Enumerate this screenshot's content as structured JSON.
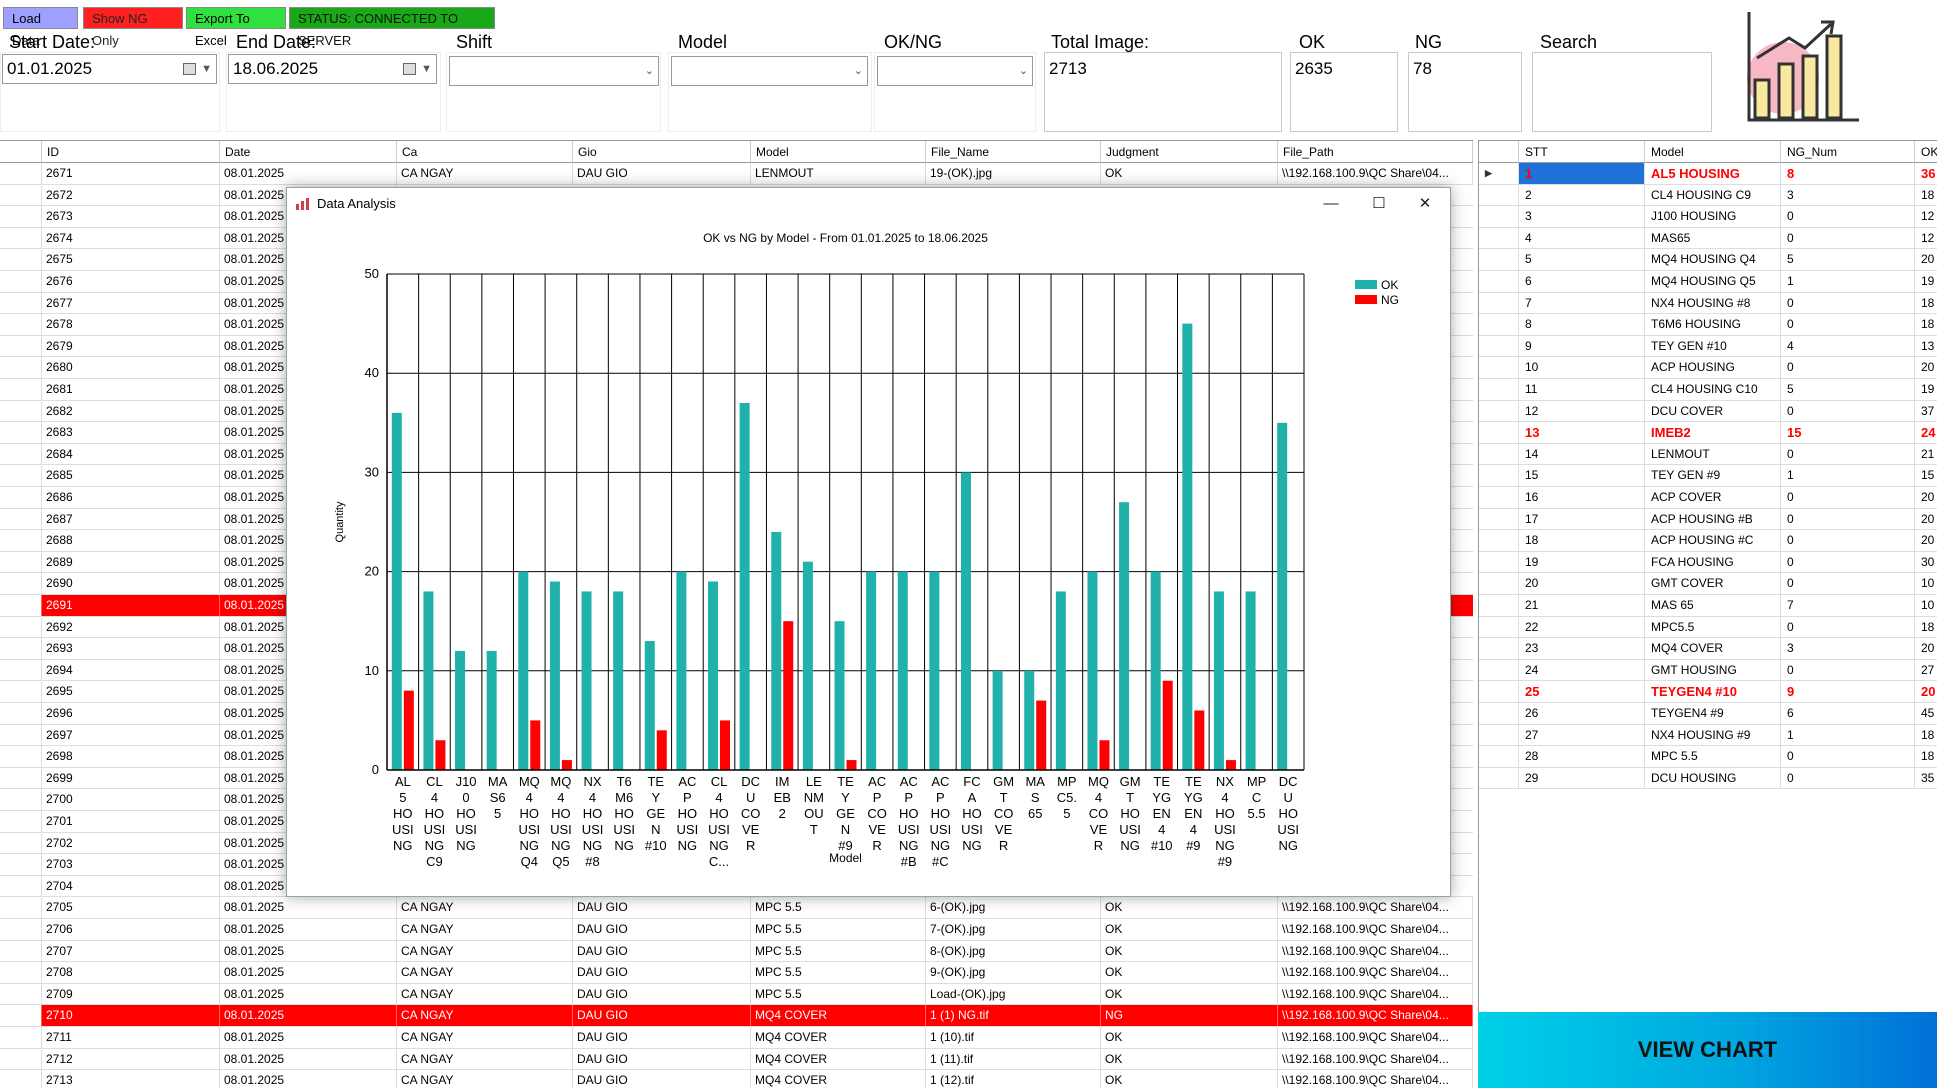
{
  "toolbar": {
    "load_data": "Load Data",
    "show_ng": "Show NG Only",
    "export_excel": "Export To Excel",
    "status": "STATUS: CONNECTED TO SERVER",
    "colors": {
      "load": "#9ea0ff",
      "show_ng": "#ff2020",
      "export": "#30e040",
      "status": "#18a818"
    }
  },
  "filters": {
    "start_date_label": "Start Date:",
    "start_date": "01.01.2025",
    "end_date_label": "End  Date:",
    "end_date": "18.06.2025",
    "shift_label": "Shift",
    "model_label": "Model",
    "okng_label": "OK/NG",
    "total_label": "Total Image:",
    "total_value": "2713",
    "ok_label": "OK",
    "ok_value": "2635",
    "ng_label": "NG",
    "ng_value": "78",
    "search_label": "Search",
    "chart_icon": "bar-chart-growth-icon"
  },
  "grid": {
    "columns": [
      "ID",
      "Date",
      "Ca",
      "Gio",
      "Model",
      "File_Name",
      "Judgment",
      "File_Path"
    ],
    "top_rows": [
      {
        "id": "2671",
        "date": "08.01.2025",
        "ca": "CA NGAY",
        "gio": "DAU GIO",
        "model": "LENMOUT",
        "file": "19-(OK).jpg",
        "judg": "OK",
        "path": "\\\\192.168.100.9\\QC Share\\04...",
        "ng": false
      }
    ],
    "mid_ids": [
      "2672",
      "2673",
      "2674",
      "2675",
      "2676",
      "2677",
      "2678",
      "2679",
      "2680",
      "2681",
      "2682",
      "2683",
      "2684",
      "2685",
      "2686",
      "2687",
      "2688",
      "2689",
      "2690",
      "2691",
      "2692",
      "2693",
      "2694",
      "2695",
      "2696",
      "2697",
      "2698",
      "2699",
      "2700",
      "2701",
      "2702",
      "2703",
      "2704"
    ],
    "mid_date": "08.01.2025",
    "mid_ng_id": "2691",
    "bottom_rows": [
      {
        "id": "2705",
        "date": "08.01.2025",
        "ca": "CA NGAY",
        "gio": "DAU GIO",
        "model": "MPC 5.5",
        "file": "6-(OK).jpg",
        "judg": "OK",
        "path": "\\\\192.168.100.9\\QC Share\\04...",
        "ng": false
      },
      {
        "id": "2706",
        "date": "08.01.2025",
        "ca": "CA NGAY",
        "gio": "DAU GIO",
        "model": "MPC 5.5",
        "file": "7-(OK).jpg",
        "judg": "OK",
        "path": "\\\\192.168.100.9\\QC Share\\04...",
        "ng": false
      },
      {
        "id": "2707",
        "date": "08.01.2025",
        "ca": "CA NGAY",
        "gio": "DAU GIO",
        "model": "MPC 5.5",
        "file": "8-(OK).jpg",
        "judg": "OK",
        "path": "\\\\192.168.100.9\\QC Share\\04...",
        "ng": false
      },
      {
        "id": "2708",
        "date": "08.01.2025",
        "ca": "CA NGAY",
        "gio": "DAU GIO",
        "model": "MPC 5.5",
        "file": "9-(OK).jpg",
        "judg": "OK",
        "path": "\\\\192.168.100.9\\QC Share\\04...",
        "ng": false
      },
      {
        "id": "2709",
        "date": "08.01.2025",
        "ca": "CA NGAY",
        "gio": "DAU GIO",
        "model": "MPC 5.5",
        "file": "Load-(OK).jpg",
        "judg": "OK",
        "path": "\\\\192.168.100.9\\QC Share\\04...",
        "ng": false
      },
      {
        "id": "2710",
        "date": "08.01.2025",
        "ca": "CA NGAY",
        "gio": "DAU GIO",
        "model": "MQ4 COVER",
        "file": "1 (1) NG.tif",
        "judg": "NG",
        "path": "\\\\192.168.100.9\\QC Share\\04...",
        "ng": true
      },
      {
        "id": "2711",
        "date": "08.01.2025",
        "ca": "CA NGAY",
        "gio": "DAU GIO",
        "model": "MQ4 COVER",
        "file": "1 (10).tif",
        "judg": "OK",
        "path": "\\\\192.168.100.9\\QC Share\\04...",
        "ng": false
      },
      {
        "id": "2712",
        "date": "08.01.2025",
        "ca": "CA NGAY",
        "gio": "DAU GIO",
        "model": "MQ4 COVER",
        "file": "1 (11).tif",
        "judg": "OK",
        "path": "\\\\192.168.100.9\\QC Share\\04...",
        "ng": false
      },
      {
        "id": "2713",
        "date": "08.01.2025",
        "ca": "CA NGAY",
        "gio": "DAU GIO",
        "model": "MQ4 COVER",
        "file": "1 (12).tif",
        "judg": "OK",
        "path": "\\\\192.168.100.9\\QC Share\\04...",
        "ng": false
      }
    ]
  },
  "summary": {
    "columns": [
      "STT",
      "Model",
      "NG_Num",
      "OK_"
    ],
    "rows": [
      {
        "stt": "1",
        "model": "AL5 HOUSING",
        "ng": "8",
        "ok": "36",
        "hl": true
      },
      {
        "stt": "2",
        "model": "CL4 HOUSING C9",
        "ng": "3",
        "ok": "18",
        "hl": false
      },
      {
        "stt": "3",
        "model": "J100 HOUSING",
        "ng": "0",
        "ok": "12",
        "hl": false
      },
      {
        "stt": "4",
        "model": "MAS65",
        "ng": "0",
        "ok": "12",
        "hl": false
      },
      {
        "stt": "5",
        "model": "MQ4 HOUSING Q4",
        "ng": "5",
        "ok": "20",
        "hl": false
      },
      {
        "stt": "6",
        "model": "MQ4 HOUSING Q5",
        "ng": "1",
        "ok": "19",
        "hl": false
      },
      {
        "stt": "7",
        "model": "NX4 HOUSING #8",
        "ng": "0",
        "ok": "18",
        "hl": false
      },
      {
        "stt": "8",
        "model": "T6M6 HOUSING",
        "ng": "0",
        "ok": "18",
        "hl": false
      },
      {
        "stt": "9",
        "model": "TEY GEN #10",
        "ng": "4",
        "ok": "13",
        "hl": false
      },
      {
        "stt": "10",
        "model": "ACP HOUSING",
        "ng": "0",
        "ok": "20",
        "hl": false
      },
      {
        "stt": "11",
        "model": "CL4 HOUSING C10",
        "ng": "5",
        "ok": "19",
        "hl": false
      },
      {
        "stt": "12",
        "model": "DCU COVER",
        "ng": "0",
        "ok": "37",
        "hl": false
      },
      {
        "stt": "13",
        "model": "IMEB2",
        "ng": "15",
        "ok": "24",
        "hl": true
      },
      {
        "stt": "14",
        "model": "LENMOUT",
        "ng": "0",
        "ok": "21",
        "hl": false
      },
      {
        "stt": "15",
        "model": "TEY GEN #9",
        "ng": "1",
        "ok": "15",
        "hl": false
      },
      {
        "stt": "16",
        "model": "ACP COVER",
        "ng": "0",
        "ok": "20",
        "hl": false
      },
      {
        "stt": "17",
        "model": "ACP HOUSING #B",
        "ng": "0",
        "ok": "20",
        "hl": false
      },
      {
        "stt": "18",
        "model": "ACP HOUSING #C",
        "ng": "0",
        "ok": "20",
        "hl": false
      },
      {
        "stt": "19",
        "model": "FCA HOUSING",
        "ng": "0",
        "ok": "30",
        "hl": false
      },
      {
        "stt": "20",
        "model": "GMT COVER",
        "ng": "0",
        "ok": "10",
        "hl": false
      },
      {
        "stt": "21",
        "model": "MAS 65",
        "ng": "7",
        "ok": "10",
        "hl": false
      },
      {
        "stt": "22",
        "model": "MPC5.5",
        "ng": "0",
        "ok": "18",
        "hl": false
      },
      {
        "stt": "23",
        "model": "MQ4 COVER",
        "ng": "3",
        "ok": "20",
        "hl": false
      },
      {
        "stt": "24",
        "model": "GMT HOUSING",
        "ng": "0",
        "ok": "27",
        "hl": false
      },
      {
        "stt": "25",
        "model": "TEYGEN4 #10",
        "ng": "9",
        "ok": "20",
        "hl": true
      },
      {
        "stt": "26",
        "model": "TEYGEN4 #9",
        "ng": "6",
        "ok": "45",
        "hl": false
      },
      {
        "stt": "27",
        "model": "NX4 HOUSING #9",
        "ng": "1",
        "ok": "18",
        "hl": false
      },
      {
        "stt": "28",
        "model": "MPC 5.5",
        "ng": "0",
        "ok": "18",
        "hl": false
      },
      {
        "stt": "29",
        "model": "DCU HOUSING",
        "ng": "0",
        "ok": "35",
        "hl": false
      }
    ],
    "view_chart": "VIEW CHART"
  },
  "dialog": {
    "title": "Data Analysis",
    "title_icon": "chart-icon",
    "minimize": "—",
    "maximize": "☐",
    "close": "✕"
  },
  "chart_data": {
    "type": "bar",
    "title": "OK vs NG by Model - From 01.01.2025 to 18.06.2025",
    "xlabel": "Model",
    "ylabel": "Quantity",
    "ylim": [
      0,
      50
    ],
    "yticks": [
      0,
      10,
      20,
      30,
      40,
      50
    ],
    "grid": true,
    "legend_position": "top-right",
    "categories": [
      [
        "AL",
        "5",
        "HO",
        "USI",
        "NG"
      ],
      [
        "CL",
        "4",
        "HO",
        "USI",
        "NG",
        "C9"
      ],
      [
        "J10",
        "0",
        "HO",
        "USI",
        "NG"
      ],
      [
        "MA",
        "S6",
        "5"
      ],
      [
        "MQ",
        "4",
        "HO",
        "USI",
        "NG",
        "Q4"
      ],
      [
        "MQ",
        "4",
        "HO",
        "USI",
        "NG",
        "Q5"
      ],
      [
        "NX",
        "4",
        "HO",
        "USI",
        "NG",
        "#8"
      ],
      [
        "T6",
        "M6",
        "HO",
        "USI",
        "NG"
      ],
      [
        "TE",
        "Y",
        "GE",
        "N",
        "#10"
      ],
      [
        "AC",
        "P",
        "HO",
        "USI",
        "NG"
      ],
      [
        "CL",
        "4",
        "HO",
        "USI",
        "NG",
        "C..."
      ],
      [
        "DC",
        "U",
        "CO",
        "VE",
        "R"
      ],
      [
        "IM",
        "EB",
        "2"
      ],
      [
        "LE",
        "NM",
        "OU",
        "T"
      ],
      [
        "TE",
        "Y",
        "GE",
        "N",
        "#9"
      ],
      [
        "AC",
        "P",
        "CO",
        "VE",
        "R"
      ],
      [
        "AC",
        "P",
        "HO",
        "USI",
        "NG",
        "#B"
      ],
      [
        "AC",
        "P",
        "HO",
        "USI",
        "NG",
        "#C"
      ],
      [
        "FC",
        "A",
        "HO",
        "USI",
        "NG"
      ],
      [
        "GM",
        "T",
        "CO",
        "VE",
        "R"
      ],
      [
        "MA",
        "S",
        "65"
      ],
      [
        "MP",
        "C5.",
        "5"
      ],
      [
        "MQ",
        "4",
        "CO",
        "VE",
        "R"
      ],
      [
        "GM",
        "T",
        "HO",
        "USI",
        "NG"
      ],
      [
        "TE",
        "YG",
        "EN",
        "4",
        "#10"
      ],
      [
        "TE",
        "YG",
        "EN",
        "4",
        "#9"
      ],
      [
        "NX",
        "4",
        "HO",
        "USI",
        "NG",
        "#9"
      ],
      [
        "MP",
        "C",
        "5.5"
      ],
      [
        "DC",
        "U",
        "HO",
        "USI",
        "NG"
      ]
    ],
    "series": [
      {
        "name": "OK",
        "color": "#20b2aa",
        "values": [
          36,
          18,
          12,
          12,
          20,
          19,
          18,
          18,
          13,
          20,
          19,
          37,
          24,
          21,
          15,
          20,
          20,
          20,
          30,
          10,
          10,
          18,
          20,
          27,
          20,
          45,
          18,
          18,
          35
        ]
      },
      {
        "name": "NG",
        "color": "#ff0000",
        "values": [
          8,
          3,
          0,
          0,
          5,
          1,
          0,
          0,
          4,
          0,
          5,
          0,
          15,
          0,
          1,
          0,
          0,
          0,
          0,
          0,
          7,
          0,
          3,
          0,
          9,
          6,
          1,
          0,
          0
        ]
      }
    ]
  }
}
